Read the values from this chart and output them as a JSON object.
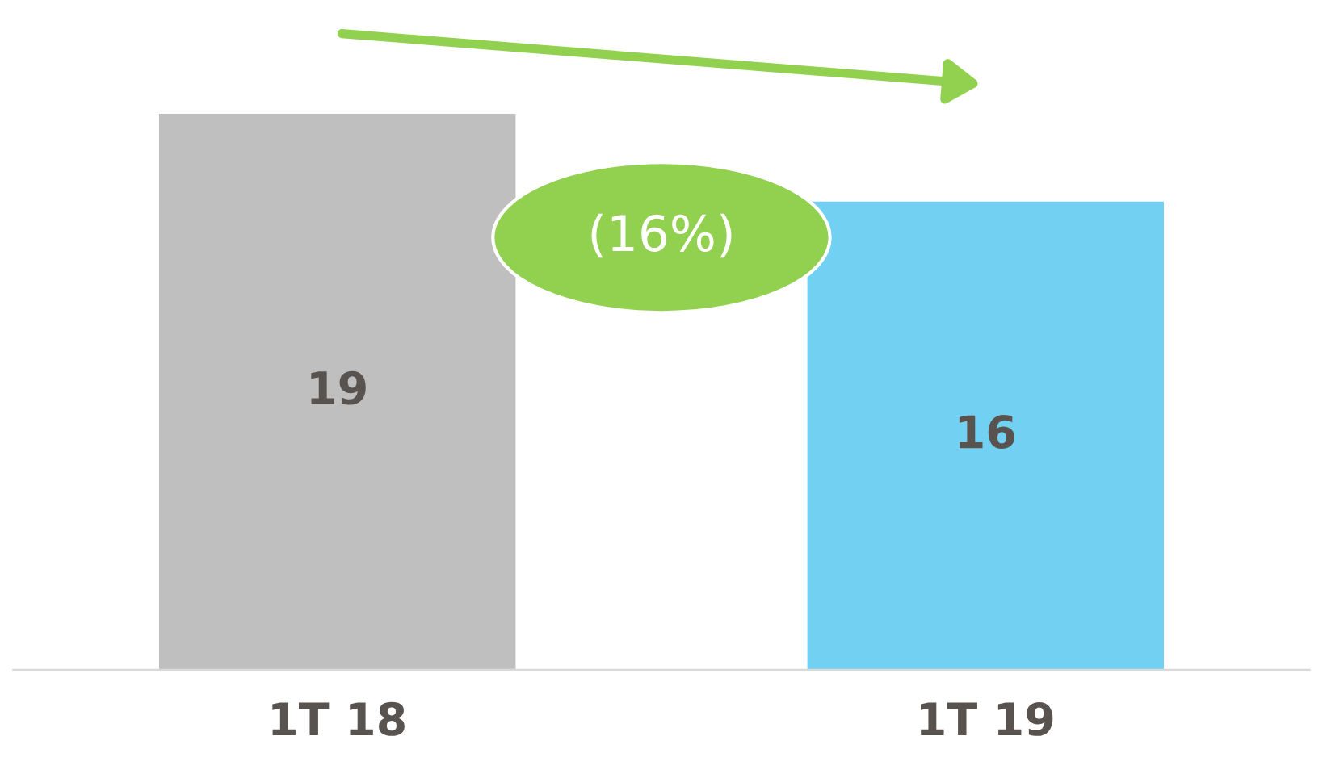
{
  "chart_data": {
    "type": "bar",
    "categories": [
      "1T 18",
      "1T 19"
    ],
    "values": [
      19,
      16
    ],
    "colors": [
      "#bfbfbf",
      "#72d0f2"
    ],
    "data_labels": true,
    "grid": false,
    "annotations": [
      "(16%)"
    ]
  }
}
